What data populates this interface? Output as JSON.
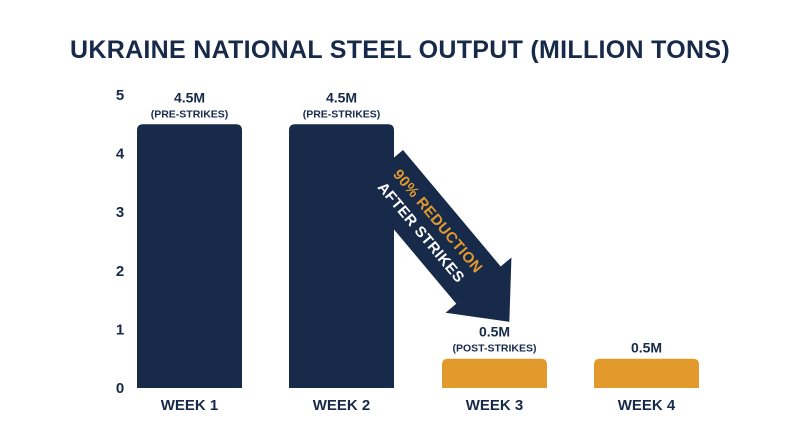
{
  "chart_data": {
    "type": "bar",
    "title": "UKRAINE NATIONAL STEEL OUTPUT (MILLION TONS)",
    "categories": [
      "WEEK 1",
      "WEEK 2",
      "WEEK 3",
      "WEEK 4"
    ],
    "values": [
      4.5,
      4.5,
      0.5,
      0.5
    ],
    "value_labels": [
      "4.5M",
      "4.5M",
      "0.5M",
      "0.5M"
    ],
    "value_notes": [
      "(PRE-STRIKES)",
      "(PRE-STRIKES)",
      "(POST-STRIKES)",
      ""
    ],
    "bar_colors": [
      "#172a4a",
      "#172a4a",
      "#e39a2d",
      "#e39a2d"
    ],
    "ylim": [
      0,
      5
    ],
    "yticks": [
      0,
      1,
      2,
      3,
      4,
      5
    ],
    "xlabel": "",
    "ylabel": "",
    "grid": false,
    "annotation": {
      "line1_highlight": "90% REDUCTION",
      "line2": "AFTER STRIKES",
      "arrow_color": "#172a4a",
      "highlight_color": "#e39a2d",
      "text_color": "#ffffff"
    }
  }
}
